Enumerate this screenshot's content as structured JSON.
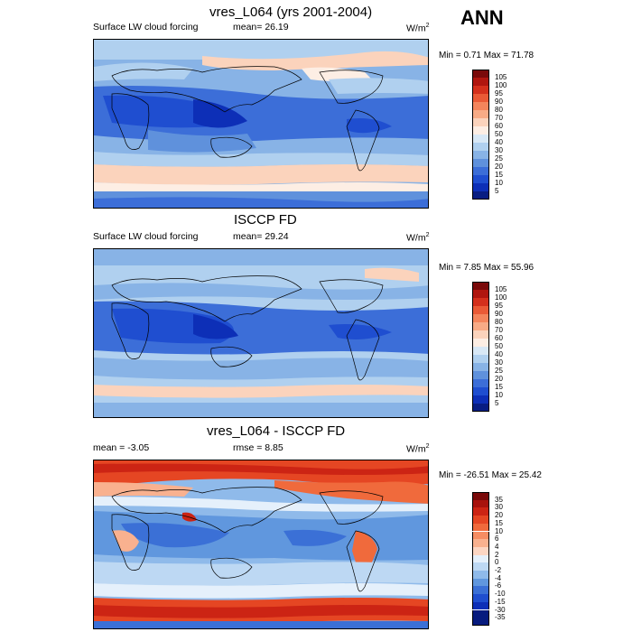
{
  "corner_label": "ANN",
  "panels": [
    {
      "title": "vres_L064 (yrs 2001-2004)",
      "left_text": "Surface LW cloud forcing",
      "mean_text": "mean=  26.19",
      "units_base": "W/m",
      "units_exp": "2",
      "minmax": "Min =   0.71 Max =  71.78",
      "levels": [
        "105",
        "100",
        "95",
        "90",
        "80",
        "70",
        "60",
        "50",
        "40",
        "30",
        "25",
        "20",
        "15",
        "10",
        "5"
      ]
    },
    {
      "title": "ISCCP FD",
      "left_text": "Surface LW cloud forcing",
      "mean_text": "mean=  29.24",
      "units_base": "W/m",
      "units_exp": "2",
      "minmax": "Min =   7.85 Max =  55.96",
      "levels": [
        "105",
        "100",
        "95",
        "90",
        "80",
        "70",
        "60",
        "50",
        "40",
        "30",
        "25",
        "20",
        "15",
        "10",
        "5"
      ]
    },
    {
      "title": "vres_L064 - ISCCP FD",
      "left_text": "mean =  -3.05",
      "mean_text": "rmse =   8.85",
      "units_base": "W/m",
      "units_exp": "2",
      "minmax": "Min = -26.51 Max =  25.42",
      "levels": [
        "35",
        "30",
        "20",
        "15",
        "10",
        "6",
        "4",
        "2",
        "0",
        "-2",
        "-4",
        "-6",
        "-10",
        "-15",
        "-30",
        "-35"
      ]
    }
  ],
  "colors": {
    "field_scale": [
      "#7a0a0a",
      "#b0160f",
      "#d4301c",
      "#ea5a36",
      "#f4855c",
      "#f8ab86",
      "#fbd3bc",
      "#fdeee4",
      "#d8e8f6",
      "#b0d0ef",
      "#88b3e6",
      "#5f91dc",
      "#3c6ed8",
      "#1f4ed0",
      "#0d2fb7",
      "#081d82"
    ],
    "diff_scale": [
      "#7a0a0a",
      "#a8120d",
      "#cc2414",
      "#e54623",
      "#f06a3c",
      "#f68d63",
      "#f9b18f",
      "#fcd6c3",
      "#e5f0fb",
      "#bdd8f3",
      "#8fbaea",
      "#6097de",
      "#3b70d6",
      "#1f4ecf",
      "#0d2fb7",
      "#071b7e"
    ]
  }
}
